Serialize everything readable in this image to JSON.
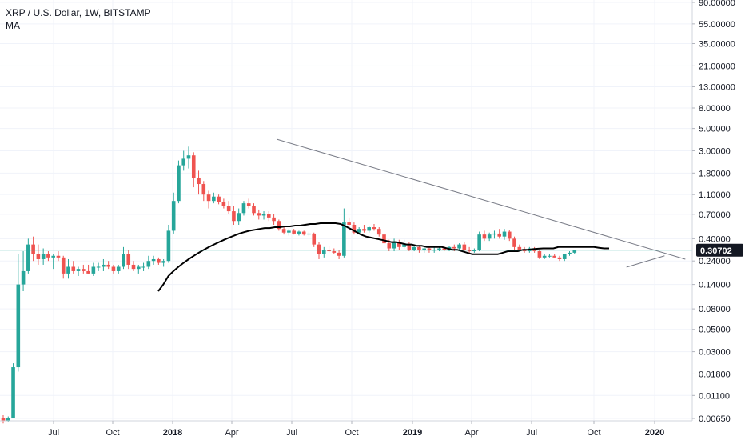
{
  "legend": {
    "title": "XRP / U.S. Dollar, 1W, BITSTAMP",
    "indicator": "MA"
  },
  "current_price": "0.30702",
  "chart_data": {
    "type": "candlestick",
    "scale": "log",
    "grid": true,
    "y_ticks": [
      "90.00000",
      "55.00000",
      "35.00000",
      "21.00000",
      "13.00000",
      "8.00000",
      "5.00000",
      "3.00000",
      "1.80000",
      "1.10000",
      "0.70000",
      "0.40000",
      "0.24000",
      "0.14000",
      "0.08000",
      "0.05000",
      "0.03000",
      "0.01800",
      "0.01100",
      "0.00650"
    ],
    "x_ticks": [
      "Jul",
      "Oct",
      "2018",
      "Apr",
      "Jul",
      "Oct",
      "2019",
      "Apr",
      "Jul",
      "Oct",
      "2020"
    ],
    "bold_x_ticks": [
      "2018",
      "2019",
      "2020"
    ],
    "colors": {
      "up": "#26a69a",
      "down": "#ef5350",
      "ma": "#000000",
      "trend": "#787b86",
      "price_line": "#26a69a"
    },
    "candles": [
      [
        0.0065,
        0.007,
        0.0058,
        0.0062
      ],
      [
        0.0062,
        0.0068,
        0.006,
        0.0066
      ],
      [
        0.0066,
        0.023,
        0.0065,
        0.021
      ],
      [
        0.021,
        0.28,
        0.019,
        0.14
      ],
      [
        0.14,
        0.3,
        0.12,
        0.19
      ],
      [
        0.19,
        0.4,
        0.18,
        0.35
      ],
      [
        0.35,
        0.42,
        0.24,
        0.28
      ],
      [
        0.28,
        0.35,
        0.22,
        0.25
      ],
      [
        0.25,
        0.32,
        0.22,
        0.28
      ],
      [
        0.28,
        0.3,
        0.24,
        0.26
      ],
      [
        0.26,
        0.28,
        0.2,
        0.27
      ],
      [
        0.27,
        0.3,
        0.24,
        0.26
      ],
      [
        0.26,
        0.27,
        0.16,
        0.18
      ],
      [
        0.18,
        0.25,
        0.16,
        0.21
      ],
      [
        0.21,
        0.24,
        0.18,
        0.19
      ],
      [
        0.19,
        0.21,
        0.17,
        0.2
      ],
      [
        0.2,
        0.22,
        0.18,
        0.19
      ],
      [
        0.19,
        0.22,
        0.18,
        0.18
      ],
      [
        0.18,
        0.23,
        0.17,
        0.21
      ],
      [
        0.21,
        0.23,
        0.19,
        0.21
      ],
      [
        0.21,
        0.25,
        0.19,
        0.22
      ],
      [
        0.22,
        0.24,
        0.2,
        0.21
      ],
      [
        0.21,
        0.22,
        0.18,
        0.19
      ],
      [
        0.19,
        0.22,
        0.18,
        0.21
      ],
      [
        0.21,
        0.33,
        0.2,
        0.28
      ],
      [
        0.28,
        0.31,
        0.2,
        0.22
      ],
      [
        0.22,
        0.24,
        0.19,
        0.2
      ],
      [
        0.2,
        0.22,
        0.18,
        0.21
      ],
      [
        0.21,
        0.23,
        0.19,
        0.21
      ],
      [
        0.21,
        0.27,
        0.2,
        0.24
      ],
      [
        0.24,
        0.27,
        0.22,
        0.25
      ],
      [
        0.25,
        0.26,
        0.22,
        0.23
      ],
      [
        0.23,
        0.25,
        0.21,
        0.24
      ],
      [
        0.24,
        0.55,
        0.23,
        0.48
      ],
      [
        0.48,
        1.15,
        0.45,
        0.95
      ],
      [
        0.95,
        2.4,
        0.9,
        2.15
      ],
      [
        2.15,
        3.0,
        1.9,
        2.5
      ],
      [
        2.5,
        3.3,
        2.0,
        2.7
      ],
      [
        2.7,
        2.9,
        1.3,
        1.6
      ],
      [
        1.6,
        1.9,
        1.1,
        1.4
      ],
      [
        1.4,
        1.5,
        0.95,
        1.1
      ],
      [
        1.1,
        1.2,
        0.8,
        0.95
      ],
      [
        0.95,
        1.15,
        0.9,
        1.05
      ],
      [
        1.05,
        1.1,
        0.88,
        0.92
      ],
      [
        0.92,
        1.0,
        0.8,
        0.85
      ],
      [
        0.85,
        0.95,
        0.7,
        0.75
      ],
      [
        0.75,
        0.85,
        0.55,
        0.6
      ],
      [
        0.6,
        0.8,
        0.55,
        0.72
      ],
      [
        0.72,
        0.95,
        0.68,
        0.9
      ],
      [
        0.9,
        1.0,
        0.8,
        0.85
      ],
      [
        0.85,
        0.9,
        0.68,
        0.72
      ],
      [
        0.72,
        0.78,
        0.62,
        0.68
      ],
      [
        0.68,
        0.75,
        0.62,
        0.7
      ],
      [
        0.7,
        0.75,
        0.6,
        0.65
      ],
      [
        0.65,
        0.7,
        0.55,
        0.6
      ],
      [
        0.6,
        0.62,
        0.48,
        0.5
      ],
      [
        0.5,
        0.52,
        0.44,
        0.46
      ],
      [
        0.46,
        0.5,
        0.43,
        0.48
      ],
      [
        0.48,
        0.5,
        0.44,
        0.45
      ],
      [
        0.45,
        0.48,
        0.43,
        0.47
      ],
      [
        0.47,
        0.48,
        0.43,
        0.44
      ],
      [
        0.44,
        0.47,
        0.42,
        0.45
      ],
      [
        0.45,
        0.46,
        0.33,
        0.35
      ],
      [
        0.35,
        0.37,
        0.25,
        0.28
      ],
      [
        0.28,
        0.33,
        0.26,
        0.31
      ],
      [
        0.31,
        0.34,
        0.29,
        0.3
      ],
      [
        0.3,
        0.32,
        0.28,
        0.29
      ],
      [
        0.29,
        0.31,
        0.25,
        0.27
      ],
      [
        0.27,
        0.8,
        0.26,
        0.58
      ],
      [
        0.58,
        0.65,
        0.48,
        0.55
      ],
      [
        0.55,
        0.58,
        0.44,
        0.46
      ],
      [
        0.46,
        0.52,
        0.44,
        0.5
      ],
      [
        0.5,
        0.55,
        0.46,
        0.48
      ],
      [
        0.48,
        0.54,
        0.46,
        0.52
      ],
      [
        0.52,
        0.56,
        0.48,
        0.5
      ],
      [
        0.5,
        0.52,
        0.42,
        0.44
      ],
      [
        0.44,
        0.46,
        0.34,
        0.36
      ],
      [
        0.36,
        0.39,
        0.3,
        0.32
      ],
      [
        0.32,
        0.4,
        0.3,
        0.37
      ],
      [
        0.37,
        0.39,
        0.31,
        0.33
      ],
      [
        0.33,
        0.39,
        0.32,
        0.35
      ],
      [
        0.35,
        0.37,
        0.3,
        0.31
      ],
      [
        0.31,
        0.34,
        0.3,
        0.33
      ],
      [
        0.33,
        0.34,
        0.29,
        0.31
      ],
      [
        0.31,
        0.33,
        0.29,
        0.32
      ],
      [
        0.32,
        0.33,
        0.29,
        0.31
      ],
      [
        0.31,
        0.33,
        0.29,
        0.31
      ],
      [
        0.31,
        0.33,
        0.3,
        0.32
      ],
      [
        0.32,
        0.34,
        0.3,
        0.31
      ],
      [
        0.31,
        0.34,
        0.3,
        0.33
      ],
      [
        0.33,
        0.35,
        0.3,
        0.32
      ],
      [
        0.32,
        0.36,
        0.31,
        0.35
      ],
      [
        0.35,
        0.37,
        0.3,
        0.31
      ],
      [
        0.31,
        0.33,
        0.28,
        0.3
      ],
      [
        0.3,
        0.32,
        0.29,
        0.31
      ],
      [
        0.31,
        0.47,
        0.3,
        0.44
      ],
      [
        0.44,
        0.48,
        0.38,
        0.4
      ],
      [
        0.4,
        0.46,
        0.38,
        0.44
      ],
      [
        0.44,
        0.48,
        0.4,
        0.45
      ],
      [
        0.45,
        0.5,
        0.4,
        0.42
      ],
      [
        0.42,
        0.5,
        0.39,
        0.47
      ],
      [
        0.47,
        0.49,
        0.38,
        0.4
      ],
      [
        0.4,
        0.42,
        0.31,
        0.33
      ],
      [
        0.33,
        0.35,
        0.3,
        0.31
      ],
      [
        0.31,
        0.33,
        0.29,
        0.3
      ],
      [
        0.3,
        0.33,
        0.29,
        0.32
      ],
      [
        0.32,
        0.33,
        0.29,
        0.3
      ],
      [
        0.3,
        0.31,
        0.25,
        0.26
      ],
      [
        0.26,
        0.28,
        0.25,
        0.27
      ],
      [
        0.27,
        0.28,
        0.26,
        0.27
      ],
      [
        0.27,
        0.28,
        0.26,
        0.26
      ],
      [
        0.26,
        0.27,
        0.24,
        0.25
      ],
      [
        0.25,
        0.28,
        0.24,
        0.28
      ],
      [
        0.28,
        0.3,
        0.27,
        0.29
      ],
      [
        0.29,
        0.31,
        0.28,
        0.307
      ]
    ],
    "ma": [
      0.12,
      0.14,
      0.17,
      0.19,
      0.21,
      0.23,
      0.25,
      0.27,
      0.29,
      0.31,
      0.33,
      0.35,
      0.37,
      0.39,
      0.41,
      0.43,
      0.45,
      0.465,
      0.48,
      0.49,
      0.5,
      0.51,
      0.51,
      0.52,
      0.52,
      0.53,
      0.53,
      0.54,
      0.54,
      0.55,
      0.56,
      0.56,
      0.57,
      0.57,
      0.57,
      0.57,
      0.56,
      0.53,
      0.5,
      0.47,
      0.44,
      0.42,
      0.41,
      0.4,
      0.39,
      0.38,
      0.37,
      0.37,
      0.36,
      0.35,
      0.35,
      0.34,
      0.34,
      0.33,
      0.33,
      0.33,
      0.33,
      0.32,
      0.31,
      0.31,
      0.3,
      0.29,
      0.28,
      0.28,
      0.28,
      0.28,
      0.28,
      0.28,
      0.29,
      0.3,
      0.3,
      0.3,
      0.31,
      0.31,
      0.315,
      0.318,
      0.32,
      0.32,
      0.32,
      0.33,
      0.33,
      0.33,
      0.33,
      0.33,
      0.33,
      0.33,
      0.33,
      0.325,
      0.32,
      0.32
    ],
    "trendlines": [
      {
        "from": [
          0.4,
          3.9
        ],
        "to": [
          0.99,
          0.25
        ]
      },
      {
        "from": [
          0.905,
          0.208
        ],
        "to": [
          0.96,
          0.27
        ]
      }
    ]
  }
}
